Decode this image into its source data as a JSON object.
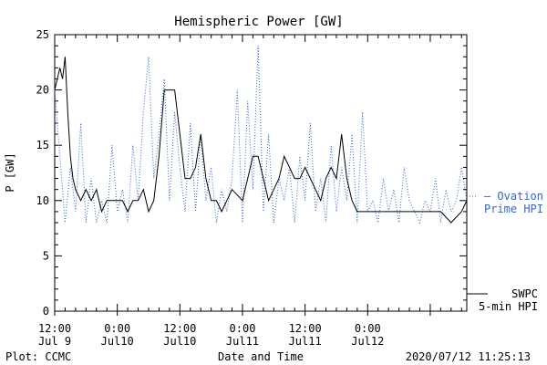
{
  "chart_data": {
    "type": "line",
    "title": "Hemispheric Power [GW]",
    "ylabel": "P [GW]",
    "xlabel": "Date and Time",
    "ylim": [
      0,
      25
    ],
    "xlim_hours_note_free": true,
    "xlim": [
      "2020-07-09 12:00",
      "2020-07-12 19:00"
    ],
    "y_ticks": [
      "0",
      "5",
      "10",
      "15",
      "20",
      "25"
    ],
    "x_ticks": [
      {
        "top": "12:00",
        "bottom": "Jul 9"
      },
      {
        "top": "0:00",
        "bottom": "Jul10"
      },
      {
        "top": "12:00",
        "bottom": "Jul10"
      },
      {
        "top": "0:00",
        "bottom": "Jul11"
      },
      {
        "top": "12:00",
        "bottom": "Jul11"
      },
      {
        "top": "0:00",
        "bottom": "Jul12"
      }
    ],
    "legend": [
      {
        "line1": "— Ovation",
        "line2": "Prime HPI",
        "color": "#3366cc",
        "style": "dotted"
      },
      {
        "line1": "SWPC",
        "line2": "5-min HPI",
        "color": "#000000",
        "style": "solid"
      }
    ],
    "series": [
      {
        "name": "SWPC 5-min HPI",
        "color": "#000000",
        "style": "solid",
        "x": [
          "2020-07-09 12:00",
          "2020-07-09 13:00",
          "2020-07-09 13:30",
          "2020-07-09 14:00",
          "2020-07-09 14:30",
          "2020-07-09 15:00",
          "2020-07-09 15:30",
          "2020-07-09 16:00",
          "2020-07-09 17:00",
          "2020-07-09 18:00",
          "2020-07-09 19:00",
          "2020-07-09 20:00",
          "2020-07-09 21:00",
          "2020-07-09 22:00",
          "2020-07-10 00:00",
          "2020-07-10 01:00",
          "2020-07-10 02:00",
          "2020-07-10 03:00",
          "2020-07-10 04:00",
          "2020-07-10 05:00",
          "2020-07-10 06:00",
          "2020-07-10 07:00",
          "2020-07-10 08:00",
          "2020-07-10 09:00",
          "2020-07-10 10:00",
          "2020-07-10 11:00",
          "2020-07-10 12:00",
          "2020-07-10 13:00",
          "2020-07-10 14:00",
          "2020-07-10 15:00",
          "2020-07-10 16:00",
          "2020-07-10 17:00",
          "2020-07-10 18:00",
          "2020-07-10 19:00",
          "2020-07-10 20:00",
          "2020-07-10 21:00",
          "2020-07-10 22:00",
          "2020-07-11 00:00",
          "2020-07-11 01:00",
          "2020-07-11 02:00",
          "2020-07-11 03:00",
          "2020-07-11 04:00",
          "2020-07-11 05:00",
          "2020-07-11 06:00",
          "2020-07-11 07:00",
          "2020-07-11 08:00",
          "2020-07-11 09:00",
          "2020-07-11 10:00",
          "2020-07-11 11:00",
          "2020-07-11 12:00",
          "2020-07-11 13:00",
          "2020-07-11 14:00",
          "2020-07-11 15:00",
          "2020-07-11 16:00",
          "2020-07-11 17:00",
          "2020-07-11 18:00",
          "2020-07-11 19:00",
          "2020-07-11 20:00",
          "2020-07-11 21:00",
          "2020-07-11 22:00",
          "2020-07-12 00:00",
          "2020-07-12 02:00",
          "2020-07-12 04:00",
          "2020-07-12 06:00",
          "2020-07-12 08:00",
          "2020-07-12 10:00",
          "2020-07-12 12:00",
          "2020-07-12 14:00",
          "2020-07-12 16:00",
          "2020-07-12 18:00",
          "2020-07-12 19:00"
        ],
        "y": [
          20,
          22,
          21,
          23,
          18,
          14,
          12,
          11,
          10,
          11,
          10,
          11,
          9,
          10,
          10,
          10,
          9,
          10,
          10,
          11,
          9,
          10,
          14,
          20,
          20,
          20,
          16,
          12,
          12,
          13,
          16,
          12,
          10,
          10,
          9,
          10,
          11,
          10,
          12,
          14,
          14,
          12,
          10,
          11,
          12,
          14,
          13,
          12,
          12,
          13,
          12,
          11,
          10,
          12,
          13,
          12,
          16,
          12,
          10,
          9,
          9,
          9,
          9,
          9,
          9,
          9,
          9,
          9,
          8,
          9,
          10
        ]
      },
      {
        "name": "Ovation Prime HPI",
        "color": "#3366cc",
        "style": "dotted",
        "x": [
          "2020-07-09 12:00",
          "2020-07-09 13:00",
          "2020-07-09 14:00",
          "2020-07-09 15:00",
          "2020-07-09 16:00",
          "2020-07-09 17:00",
          "2020-07-09 18:00",
          "2020-07-09 19:00",
          "2020-07-09 20:00",
          "2020-07-09 21:00",
          "2020-07-09 22:00",
          "2020-07-09 23:00",
          "2020-07-10 00:00",
          "2020-07-10 01:00",
          "2020-07-10 02:00",
          "2020-07-10 03:00",
          "2020-07-10 04:00",
          "2020-07-10 05:00",
          "2020-07-10 06:00",
          "2020-07-10 07:00",
          "2020-07-10 08:00",
          "2020-07-10 09:00",
          "2020-07-10 10:00",
          "2020-07-10 11:00",
          "2020-07-10 12:00",
          "2020-07-10 13:00",
          "2020-07-10 14:00",
          "2020-07-10 15:00",
          "2020-07-10 16:00",
          "2020-07-10 17:00",
          "2020-07-10 18:00",
          "2020-07-10 19:00",
          "2020-07-10 20:00",
          "2020-07-10 21:00",
          "2020-07-10 22:00",
          "2020-07-10 23:00",
          "2020-07-11 00:00",
          "2020-07-11 01:00",
          "2020-07-11 02:00",
          "2020-07-11 03:00",
          "2020-07-11 04:00",
          "2020-07-11 05:00",
          "2020-07-11 06:00",
          "2020-07-11 07:00",
          "2020-07-11 08:00",
          "2020-07-11 09:00",
          "2020-07-11 10:00",
          "2020-07-11 11:00",
          "2020-07-11 12:00",
          "2020-07-11 13:00",
          "2020-07-11 14:00",
          "2020-07-11 15:00",
          "2020-07-11 16:00",
          "2020-07-11 17:00",
          "2020-07-11 18:00",
          "2020-07-11 19:00",
          "2020-07-11 20:00",
          "2020-07-11 21:00",
          "2020-07-11 22:00",
          "2020-07-11 23:00",
          "2020-07-12 00:00",
          "2020-07-12 01:00",
          "2020-07-12 02:00",
          "2020-07-12 03:00",
          "2020-07-12 04:00",
          "2020-07-12 05:00",
          "2020-07-12 06:00",
          "2020-07-12 07:00",
          "2020-07-12 08:00",
          "2020-07-12 09:00",
          "2020-07-12 10:00",
          "2020-07-12 11:00",
          "2020-07-12 12:00",
          "2020-07-12 13:00",
          "2020-07-12 14:00",
          "2020-07-12 15:00",
          "2020-07-12 16:00",
          "2020-07-12 17:00",
          "2020-07-12 18:00",
          "2020-07-12 19:00"
        ],
        "y": [
          20,
          14,
          8,
          13,
          9,
          17,
          8,
          12,
          8,
          10,
          8,
          15,
          9,
          11,
          8,
          15,
          10,
          18,
          23,
          12,
          16,
          21,
          10,
          18,
          13,
          9,
          17,
          9,
          16,
          10,
          13,
          8,
          11,
          9,
          12,
          20,
          8,
          19,
          11,
          24,
          9,
          16,
          8,
          12,
          10,
          13,
          8,
          14,
          10,
          17,
          9,
          12,
          8,
          15,
          9,
          13,
          10,
          16,
          8,
          18,
          9,
          10,
          8,
          12,
          9,
          11,
          8,
          13,
          10,
          9,
          8,
          10,
          9,
          12,
          8,
          11,
          9,
          10,
          13,
          10
        ]
      }
    ],
    "footer_left": "Plot: CCMC",
    "footer_right": "2020/07/12 11:25:13"
  }
}
